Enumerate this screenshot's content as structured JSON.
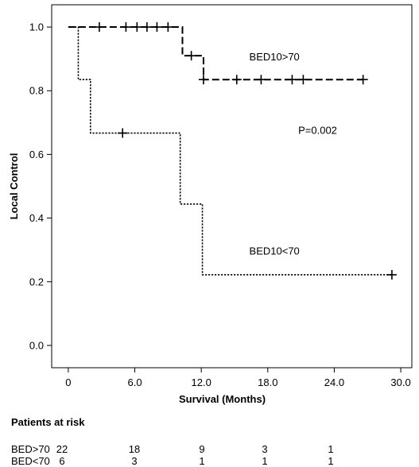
{
  "chart_data": {
    "type": "line",
    "subtype": "kaplan-meier",
    "xlabel": "Survival (Months)",
    "ylabel": "Local Control",
    "xlim": [
      -1.5,
      31
    ],
    "ylim": [
      -0.07,
      1.07
    ],
    "x_ticks": [
      0,
      6,
      12,
      18,
      24,
      30
    ],
    "x_tick_labels": [
      "0",
      "6.0",
      "12.0",
      "18.0",
      "24.0",
      "30.0"
    ],
    "y_ticks": [
      0,
      0.2,
      0.4,
      0.6,
      0.8,
      1.0
    ],
    "y_tick_labels": [
      "0.0",
      "0.2",
      "0.4",
      "0.6",
      "0.8",
      "1.0"
    ],
    "grid": false,
    "series": [
      {
        "name": "BED10>70",
        "line_style": "dashed",
        "steps": [
          [
            0,
            1.0
          ],
          [
            10.3,
            0.91
          ],
          [
            12.2,
            0.835
          ],
          [
            26.6,
            0.835
          ]
        ],
        "censored": [
          [
            2.8,
            1.0
          ],
          [
            5.2,
            1.0
          ],
          [
            6.2,
            1.0
          ],
          [
            7.1,
            1.0
          ],
          [
            8.0,
            1.0
          ],
          [
            9.0,
            1.0
          ],
          [
            11.1,
            0.91
          ],
          [
            12.2,
            0.835
          ],
          [
            15.2,
            0.835
          ],
          [
            17.4,
            0.835
          ],
          [
            20.2,
            0.835
          ],
          [
            21.2,
            0.835
          ],
          [
            26.6,
            0.835
          ]
        ]
      },
      {
        "name": "BED10<70",
        "line_style": "dotted",
        "steps": [
          [
            0,
            1.0
          ],
          [
            0.9,
            0.835
          ],
          [
            2.0,
            0.667
          ],
          [
            10.1,
            0.444
          ],
          [
            12.1,
            0.222
          ],
          [
            29.2,
            0.222
          ]
        ],
        "censored": [
          [
            4.9,
            0.667
          ],
          [
            29.2,
            0.222
          ]
        ]
      }
    ],
    "annotations": [
      {
        "text": "BED10>70",
        "x": 18.6,
        "y": 0.895
      },
      {
        "text": "P=0.002",
        "x": 22.5,
        "y": 0.665
      },
      {
        "text": "BED10<70",
        "x": 18.6,
        "y": 0.285
      }
    ]
  },
  "risk_table": {
    "title": "Patients at risk",
    "rows": [
      {
        "label": "BED>70",
        "values": [
          "22",
          "18",
          "9",
          "3",
          "1"
        ]
      },
      {
        "label": "BED<70",
        "values": [
          "6",
          "3",
          "1",
          "1",
          "1"
        ]
      }
    ]
  }
}
